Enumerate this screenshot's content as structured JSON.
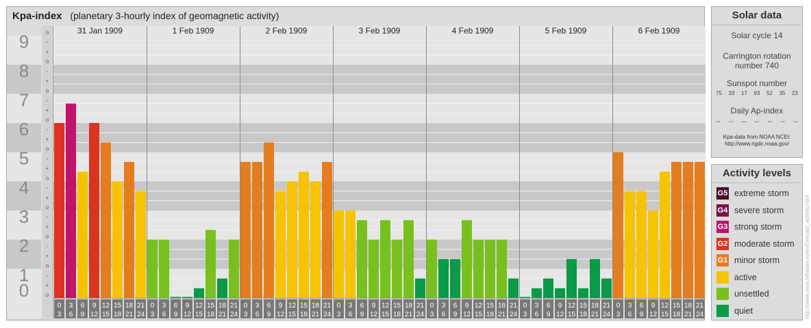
{
  "header": {
    "title": "Kpa-index",
    "subtitle": "(planetary 3-hourly index of geomagnetic activity)"
  },
  "chart_data": {
    "type": "bar",
    "title": "Kpa-index",
    "subtitle": "(planetary 3-hourly index of geomagnetic activity)",
    "ylim": [
      0,
      9
    ],
    "y_major_ticks": [
      "0",
      "1",
      "2",
      "3",
      "4",
      "5",
      "6",
      "7",
      "8",
      "9"
    ],
    "y_minor_ticks": [
      "o",
      "+",
      "-"
    ],
    "days": [
      "31 Jan 1909",
      "1 Feb 1909",
      "2 Feb 1909",
      "3 Feb 1909",
      "4 Feb 1909",
      "5 Feb 1909",
      "6 Feb 1909"
    ],
    "slots": [
      [
        "0",
        "3"
      ],
      [
        "3",
        "6"
      ],
      [
        "6",
        "9"
      ],
      [
        "9",
        "12"
      ],
      [
        "12",
        "15"
      ],
      [
        "15",
        "18"
      ],
      [
        "18",
        "21"
      ],
      [
        "21",
        "24"
      ]
    ],
    "values": [
      [
        6.0,
        6.667,
        4.333,
        6.0,
        5.333,
        4.0,
        4.667,
        3.667
      ],
      [
        2.0,
        2.0,
        0.0,
        0.0,
        0.333,
        2.333,
        0.667,
        2.0
      ],
      [
        4.667,
        4.667,
        5.333,
        3.667,
        4.0,
        4.333,
        4.0,
        4.667
      ],
      [
        3.0,
        3.0,
        2.667,
        2.0,
        2.667,
        2.0,
        2.667,
        0.667
      ],
      [
        2.0,
        1.333,
        1.333,
        2.667,
        2.0,
        2.0,
        2.0,
        0.667
      ],
      [
        0.0,
        0.333,
        0.667,
        0.333,
        1.333,
        0.333,
        1.333,
        0.667
      ],
      [
        5.0,
        3.667,
        3.667,
        3.0,
        4.333,
        4.667,
        4.667,
        4.667
      ]
    ],
    "grid": true,
    "level_thresholds": {
      "quiet_below": 2.0,
      "unsettled_below": 3.0,
      "active_below": 4.5,
      "G1_below": 5.5,
      "G2_below": 6.5,
      "G3_below": 7.5,
      "G4_below": 8.5
    }
  },
  "colors": {
    "extreme": "#4a0a2a",
    "severe": "#7a1248",
    "strong": "#c0136a",
    "moderate": "#dc3220",
    "minor": "#e47d1f",
    "active": "#f7c300",
    "unsettled": "#78c01e",
    "quiet": "#0a9a48",
    "panel": "#dcdcdc",
    "band_dark": "#c8c8c8",
    "band_light": "#e6e6e6",
    "axis_tile": "#a8a8a8",
    "slot_tile": "#787878"
  },
  "solar_data": {
    "title": "Solar data",
    "solar_cycle": "Solar cycle 14",
    "carrington_line1": "Carrington rotation",
    "carrington_line2": "number 740",
    "sunspot_title": "Sunspot number",
    "sunspots": [
      "75",
      "33",
      "17",
      "93",
      "52",
      "35",
      "23"
    ],
    "ap_title": "Daily Ap-index",
    "ap_values": [
      "--",
      "--",
      "--",
      "--",
      "--",
      "--",
      "--"
    ],
    "note_line1": "Kpa-data from NOAA NCEI:",
    "note_line2": "http://www.ngdc.noaa.gov/"
  },
  "activity_levels": {
    "title": "Activity levels",
    "items": [
      {
        "code": "G5",
        "label": "extreme storm",
        "color": "#4a0a2a"
      },
      {
        "code": "G4",
        "label": "severe storm",
        "color": "#7a1248"
      },
      {
        "code": "G3",
        "label": "strong storm",
        "color": "#c0136a"
      },
      {
        "code": "G2",
        "label": "moderate storm",
        "color": "#dc3220"
      },
      {
        "code": "G1",
        "label": "minor storm",
        "color": "#e47d1f"
      },
      {
        "code": "",
        "label": "active",
        "color": "#f7c300"
      },
      {
        "code": "",
        "label": "unsettled",
        "color": "#78c01e"
      },
      {
        "code": "",
        "label": "quiet",
        "color": "#0a9a48"
      }
    ]
  },
  "credit": "http://www.tesis.lebedev.ru/en/forecast_activity.html"
}
